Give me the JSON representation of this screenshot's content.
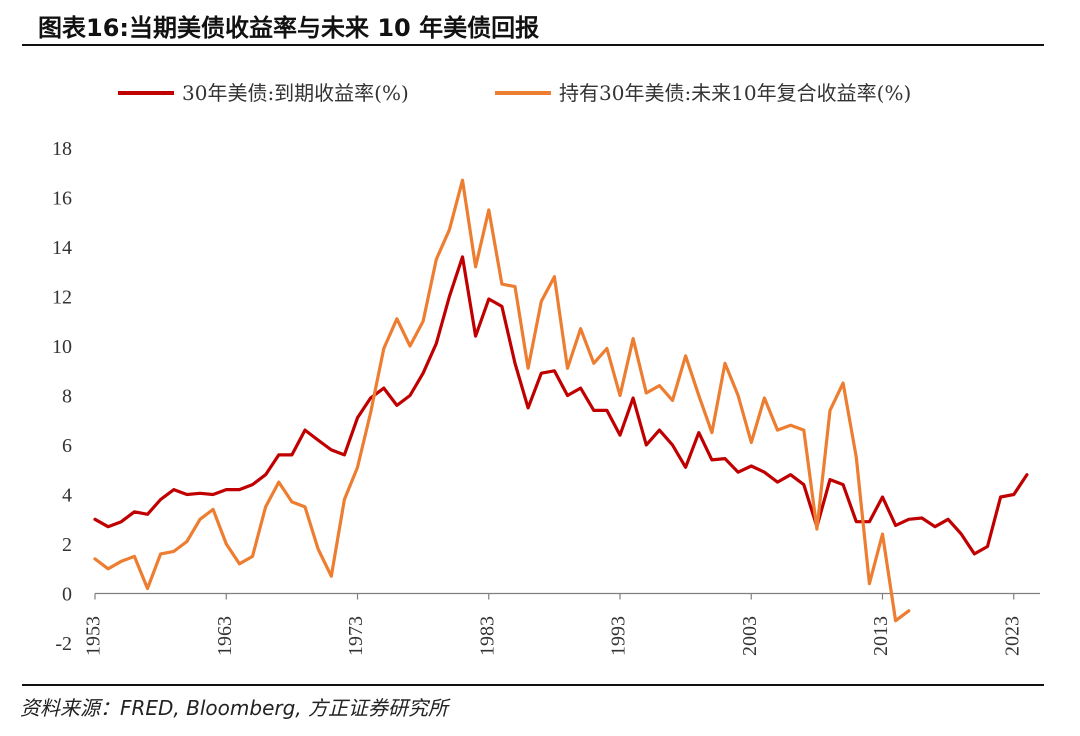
{
  "title": "图表16:当期美债收益率与未来 10 年美债回报",
  "source": "资料来源：FRED, Bloomberg, 方正证券研究所",
  "chart_data": {
    "type": "line",
    "x_ticks": [
      "1953",
      "1963",
      "1973",
      "1983",
      "1993",
      "2003",
      "2013",
      "2023"
    ],
    "y_ticks": [
      "18",
      "16",
      "14",
      "12",
      "10",
      "8",
      "6",
      "4",
      "2",
      "0",
      "-2"
    ],
    "xlim": [
      1953,
      2025
    ],
    "ylim": [
      -2,
      18
    ],
    "grid": false,
    "legend_position": "top",
    "series": [
      {
        "name": "30年美债:到期收益率(%)",
        "color": "#C00000",
        "x": [
          1953,
          1954,
          1955,
          1956,
          1957,
          1958,
          1959,
          1960,
          1961,
          1962,
          1963,
          1964,
          1965,
          1966,
          1967,
          1968,
          1969,
          1970,
          1971,
          1972,
          1973,
          1974,
          1975,
          1976,
          1977,
          1978,
          1979,
          1980,
          1981,
          1982,
          1983,
          1984,
          1985,
          1986,
          1987,
          1988,
          1989,
          1990,
          1991,
          1992,
          1993,
          1994,
          1995,
          1996,
          1997,
          1998,
          1999,
          2000,
          2001,
          2002,
          2003,
          2004,
          2005,
          2006,
          2007,
          2008,
          2009,
          2010,
          2011,
          2012,
          2013,
          2014,
          2015,
          2016,
          2017,
          2018,
          2019,
          2020,
          2021,
          2022,
          2023,
          2024
        ],
        "values": [
          3.0,
          2.7,
          2.9,
          3.3,
          3.2,
          3.8,
          4.2,
          4.0,
          4.05,
          4.0,
          4.2,
          4.2,
          4.4,
          4.8,
          5.6,
          5.6,
          6.6,
          6.2,
          5.8,
          5.6,
          7.1,
          7.9,
          8.3,
          7.6,
          8.0,
          8.9,
          10.1,
          12.0,
          13.6,
          10.4,
          11.9,
          11.6,
          9.3,
          7.5,
          8.9,
          9.0,
          8.0,
          8.3,
          7.4,
          7.4,
          6.4,
          7.9,
          6.0,
          6.6,
          6.0,
          5.1,
          6.5,
          5.4,
          5.45,
          4.9,
          5.15,
          4.9,
          4.5,
          4.8,
          4.4,
          2.7,
          4.6,
          4.4,
          2.9,
          2.9,
          3.9,
          2.75,
          3.0,
          3.05,
          2.7,
          3.0,
          2.4,
          1.6,
          1.9,
          3.9,
          4.0,
          4.8
        ]
      },
      {
        "name": "持有30年美债:未来10年复合收益率(%)",
        "color": "#ED7D31",
        "x": [
          1953,
          1954,
          1955,
          1956,
          1957,
          1958,
          1959,
          1960,
          1961,
          1962,
          1963,
          1964,
          1965,
          1966,
          1967,
          1968,
          1969,
          1970,
          1971,
          1972,
          1973,
          1974,
          1975,
          1976,
          1977,
          1978,
          1979,
          1980,
          1981,
          1982,
          1983,
          1984,
          1985,
          1986,
          1987,
          1988,
          1989,
          1990,
          1991,
          1992,
          1993,
          1994,
          1995,
          1996,
          1997,
          1998,
          1999,
          2000,
          2001,
          2002,
          2003,
          2004,
          2005,
          2006,
          2007,
          2008,
          2009,
          2010,
          2011,
          2012,
          2013,
          2014,
          2015
        ],
        "values": [
          1.4,
          1.0,
          1.3,
          1.5,
          0.2,
          1.6,
          1.7,
          2.1,
          3.0,
          3.4,
          2.0,
          1.2,
          1.5,
          3.5,
          4.5,
          3.7,
          3.5,
          1.8,
          0.7,
          3.8,
          5.1,
          7.3,
          9.9,
          11.1,
          10.0,
          11.0,
          13.5,
          14.7,
          16.7,
          13.2,
          15.5,
          12.5,
          12.4,
          9.1,
          11.8,
          12.8,
          9.1,
          10.7,
          9.3,
          9.9,
          8.0,
          10.3,
          8.1,
          8.4,
          7.8,
          9.6,
          8.0,
          6.5,
          9.3,
          8.0,
          6.1,
          7.9,
          6.6,
          6.8,
          6.6,
          2.6,
          7.4,
          8.5,
          5.5,
          0.4,
          2.4,
          -1.1,
          -0.7
        ]
      }
    ]
  }
}
